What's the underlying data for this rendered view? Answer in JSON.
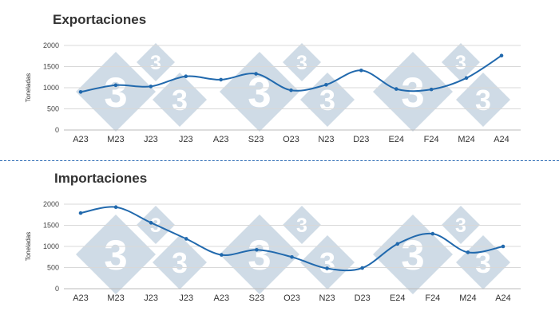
{
  "colors": {
    "series": "#2169ad",
    "watermark": "#cfdbe6"
  },
  "watermark": {
    "text": "3"
  },
  "chart_data": [
    {
      "type": "line",
      "title": "Exportaciones",
      "ylabel": "Toneladas",
      "categories": [
        "A23",
        "M23",
        "J23",
        "J23",
        "A23",
        "S23",
        "O23",
        "N23",
        "D23",
        "E24",
        "F24",
        "M24",
        "A24"
      ],
      "ylim": [
        0,
        2000
      ],
      "yticks": [
        "0",
        "500",
        "1000",
        "1500",
        "2000"
      ],
      "grid": true,
      "smooth": true,
      "series": [
        {
          "values": [
            900,
            1060,
            1030,
            1270,
            1190,
            1330,
            940,
            1070,
            1410,
            970,
            960,
            1230,
            1760
          ]
        }
      ]
    },
    {
      "type": "line",
      "title": "Importaciones",
      "ylabel": "Toneladas",
      "categories": [
        "A23",
        "M23",
        "J23",
        "J23",
        "A23",
        "S23",
        "O23",
        "N23",
        "D23",
        "E24",
        "F24",
        "M24",
        "A24"
      ],
      "ylim": [
        0,
        2000
      ],
      "yticks": [
        "0",
        "500",
        "1000",
        "1500",
        "2000"
      ],
      "grid": true,
      "smooth": true,
      "series": [
        {
          "values": [
            1790,
            1930,
            1560,
            1180,
            800,
            920,
            750,
            480,
            490,
            1060,
            1300,
            860,
            1000
          ]
        }
      ]
    }
  ]
}
